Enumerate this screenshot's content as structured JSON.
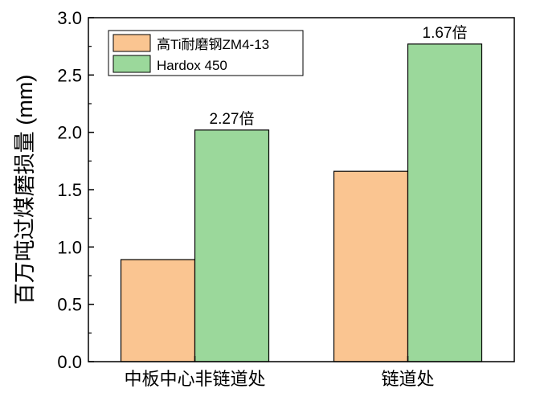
{
  "chart_data": {
    "type": "bar",
    "title": "",
    "xlabel": "",
    "ylabel": "百万吨过煤磨损量 (mm)",
    "ylim": [
      0,
      3.0
    ],
    "yticks": [
      0.0,
      0.5,
      1.0,
      1.5,
      2.0,
      2.5,
      3.0
    ],
    "ytick_labels": [
      "0.0",
      "0.5",
      "1.0",
      "1.5",
      "2.0",
      "2.5",
      "3.0"
    ],
    "categories": [
      "中板中心非链道处",
      "链道处"
    ],
    "series": [
      {
        "name": "高Ti耐磨钢ZM4-13",
        "values": [
          0.89,
          1.66
        ],
        "color": "#FAC591"
      },
      {
        "name": "Hardox 450",
        "values": [
          2.02,
          2.77
        ],
        "color": "#9BD89B"
      }
    ],
    "annotations": [
      "2.27倍",
      "1.67倍"
    ],
    "legend_position": "top-left",
    "grid": false
  }
}
